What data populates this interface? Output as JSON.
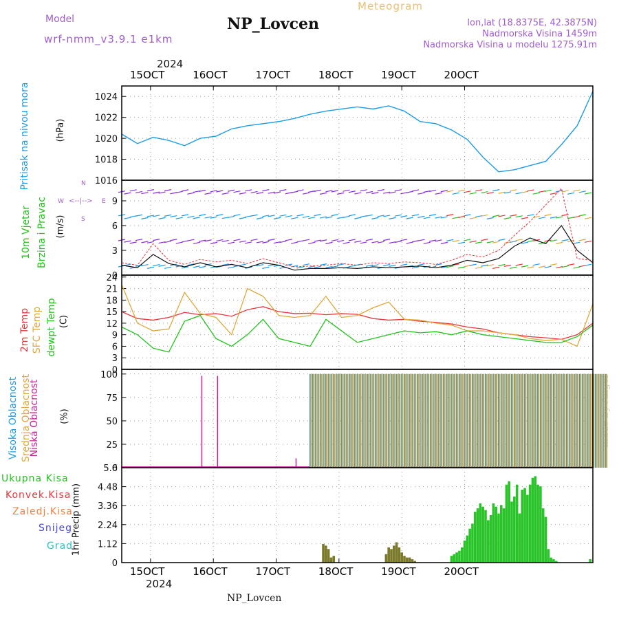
{
  "header": {
    "model_label": "Model",
    "model_name": "wrf-nmm_v3.9.1 e1km",
    "title": "NP_Lovcen",
    "meteogram_label": "Meteogram",
    "lonlat": "lon,lat (18.8375E, 42.3875N)",
    "elevation": "Nadmorska Visina 1459m",
    "model_elevation": "Nadmorska Visina u modelu 1275.91m"
  },
  "top_axis": {
    "year": "2024",
    "dates": [
      "15OCT",
      "16OCT",
      "17OCT",
      "18OCT",
      "19OCT",
      "20OCT"
    ]
  },
  "bottom_axis": {
    "year": "2024",
    "dates": [
      "15OCT",
      "16OCT",
      "17OCT",
      "18OCT",
      "19OCT",
      "20OCT"
    ],
    "station": "NP_Lovcen"
  },
  "watermark": "made by Angel",
  "colors": {
    "pressure": "#1e9be6",
    "temp2m": "#e8343a",
    "sfc": "#e0a83a",
    "dewpt": "#22c41c",
    "cloud_high": "#1e9be6",
    "cloud_mid": "#e0a83a",
    "cloud_low": "#c81e96",
    "rain": "#2ac42a",
    "wind_purple": "#8a2be2",
    "gust": "#e8343a"
  },
  "panels": {
    "pressure": {
      "label1": "Pritisak na nivou mora",
      "unit": "(hPa)",
      "ticks": [
        "1016",
        "1018",
        "1020",
        "1022",
        "1024"
      ]
    },
    "wind": {
      "label1": "10m Vjetar",
      "label2": "Brzina i Pravac",
      "unit": "(m/s)",
      "ticks": [
        "0",
        "3",
        "6",
        "9"
      ],
      "compass_w": "W",
      "compass_e": "E",
      "compass_n": "N",
      "compass_s": "S"
    },
    "temp": {
      "label1": "2m Temp",
      "label2": "SFC Temp",
      "label3": "dewpt Temp",
      "unit": "(C)",
      "ticks": [
        "0",
        "3",
        "6",
        "9",
        "12",
        "15",
        "18",
        "21",
        "24"
      ]
    },
    "cloud": {
      "label1": "Visoka Oblacnost",
      "label2": "Srednja Oblacnost",
      "label3": "Niska Oblacnost",
      "unit": "(%)",
      "ticks": [
        "0",
        "25",
        "50",
        "75",
        "100"
      ]
    },
    "precip": {
      "legend": [
        "Ukupna Kisa",
        "Konvek.Kisa",
        "Zaledj.Kisa",
        "Snijeg",
        "Grad"
      ],
      "unit": "1hr Precip (mm)",
      "ticks": [
        "0",
        "1.12",
        "2.24",
        "3.36",
        "4.48",
        "5.6"
      ]
    }
  },
  "chart_data": [
    {
      "type": "line",
      "title": "",
      "ylabel": "(hPa)",
      "ylim": [
        1016,
        1025
      ],
      "x": [
        0,
        6,
        12,
        18,
        24,
        30,
        36,
        42,
        48,
        54,
        60,
        66,
        72,
        78,
        84,
        90,
        96,
        102,
        108,
        114,
        120,
        126,
        132,
        138,
        144,
        150,
        156,
        162,
        168,
        174,
        180
      ],
      "series": [
        {
          "name": "Pritisak na nivou mora",
          "values": [
            1020.4,
            1019.5,
            1020.1,
            1019.8,
            1019.3,
            1020.0,
            1020.2,
            1020.9,
            1021.2,
            1021.4,
            1021.6,
            1021.9,
            1022.3,
            1022.6,
            1022.8,
            1023.0,
            1022.8,
            1023.1,
            1022.6,
            1021.6,
            1021.4,
            1020.8,
            1019.9,
            1018.2,
            1016.8,
            1017.0,
            1017.4,
            1017.8,
            1019.4,
            1021.2,
            1024.5
          ]
        }
      ]
    },
    {
      "type": "line",
      "title": "",
      "ylabel": "(m/s)",
      "ylim": [
        0,
        11.5
      ],
      "x": [
        0,
        6,
        12,
        18,
        24,
        30,
        36,
        42,
        48,
        54,
        60,
        66,
        72,
        78,
        84,
        90,
        96,
        102,
        108,
        114,
        120,
        126,
        132,
        138,
        144,
        150,
        156,
        162,
        168,
        174,
        180
      ],
      "series": [
        {
          "name": "10m Vjetar",
          "values": [
            1.2,
            0.9,
            2.5,
            1.4,
            1.0,
            1.5,
            1.0,
            1.3,
            0.9,
            1.5,
            1.2,
            0.6,
            0.8,
            0.8,
            0.9,
            0.8,
            1.0,
            0.9,
            1.0,
            1.1,
            0.9,
            1.2,
            1.8,
            1.5,
            2.0,
            3.5,
            4.5,
            3.8,
            6.0,
            3.0,
            1.5
          ]
        },
        {
          "name": "Gust",
          "values": [
            1.5,
            1.2,
            3.8,
            1.8,
            1.3,
            1.9,
            1.6,
            1.8,
            1.4,
            2.0,
            1.5,
            1.0,
            1.1,
            1.2,
            1.4,
            1.2,
            1.5,
            1.4,
            1.6,
            1.5,
            1.3,
            1.8,
            2.5,
            2.2,
            3.0,
            4.8,
            6.5,
            8.5,
            10.5,
            2.0,
            1.8
          ]
        }
      ]
    },
    {
      "type": "line",
      "title": "",
      "ylabel": "(C)",
      "ylim": [
        0,
        24
      ],
      "x": [
        0,
        6,
        12,
        18,
        24,
        30,
        36,
        42,
        48,
        54,
        60,
        66,
        72,
        78,
        84,
        90,
        96,
        102,
        108,
        114,
        120,
        126,
        132,
        138,
        144,
        150,
        156,
        162,
        168,
        174,
        180
      ],
      "series": [
        {
          "name": "2m Temp",
          "values": [
            15.0,
            13.2,
            12.8,
            13.5,
            14.8,
            14.2,
            14.5,
            13.8,
            15.5,
            16.3,
            15.0,
            14.5,
            14.6,
            14.2,
            14.5,
            14.3,
            13.2,
            12.8,
            13.0,
            12.5,
            12.2,
            11.8,
            11.0,
            10.5,
            9.5,
            9.0,
            8.5,
            8.2,
            7.8,
            9.0,
            12.0
          ]
        },
        {
          "name": "SFC Temp",
          "values": [
            22.0,
            12.0,
            10.0,
            10.5,
            20.0,
            14.5,
            13.5,
            9.0,
            21.0,
            19.0,
            14.0,
            13.5,
            14.0,
            19.0,
            13.5,
            14.0,
            16.0,
            17.5,
            13.0,
            12.8,
            12.0,
            11.5,
            10.0,
            10.0,
            9.5,
            9.0,
            8.0,
            7.5,
            7.8,
            6.0,
            17.0
          ]
        },
        {
          "name": "dewpt Temp",
          "values": [
            11.0,
            9.0,
            5.5,
            4.5,
            12.5,
            14.0,
            8.0,
            6.0,
            9.0,
            13.0,
            8.0,
            7.0,
            6.0,
            13.0,
            10.0,
            7.0,
            8.0,
            9.0,
            10.0,
            9.5,
            9.8,
            9.0,
            10.0,
            9.0,
            8.5,
            8.0,
            7.5,
            7.0,
            7.0,
            8.5,
            11.5
          ]
        }
      ]
    },
    {
      "type": "bar",
      "title": "",
      "ylabel": "(%)",
      "ylim": [
        0,
        100
      ],
      "series": [
        {
          "name": "Visoka Oblacnost",
          "values": [
            0,
            0,
            0,
            0,
            0,
            0,
            0,
            0,
            0,
            0,
            0,
            0,
            100,
            100,
            100,
            100,
            100,
            100,
            100,
            100,
            100,
            100,
            100,
            100,
            100,
            100,
            100,
            100,
            100,
            100,
            100
          ]
        },
        {
          "name": "Srednja Oblacnost",
          "values": [
            0,
            0,
            0,
            0,
            0,
            0,
            0,
            0,
            0,
            0,
            0,
            0,
            100,
            100,
            100,
            100,
            100,
            100,
            100,
            100,
            100,
            100,
            100,
            100,
            100,
            100,
            100,
            100,
            100,
            100,
            100
          ]
        },
        {
          "name": "Niska Oblacnost",
          "values": [
            0,
            0,
            0,
            0,
            0,
            98,
            98,
            0,
            0,
            0,
            0,
            10,
            0,
            0,
            0,
            0,
            0,
            0,
            0,
            0,
            0,
            0,
            0,
            0,
            0,
            0,
            0,
            0,
            0,
            0,
            0
          ]
        }
      ]
    },
    {
      "type": "bar",
      "title": "",
      "ylabel": "1hr Precip (mm)",
      "ylim": [
        0,
        5.6
      ],
      "x": [
        77,
        78,
        79,
        80,
        81,
        101,
        102,
        103,
        104,
        105,
        106,
        107,
        108,
        109,
        110,
        111,
        112,
        126,
        127,
        128,
        129,
        130,
        131,
        132,
        133,
        134,
        135,
        136,
        137,
        138,
        139,
        140,
        141,
        142,
        143,
        144,
        145,
        146,
        147,
        148,
        149,
        150,
        151,
        152,
        153,
        154,
        155,
        156,
        157,
        158,
        159,
        160,
        161,
        162,
        163,
        164,
        165,
        166,
        179
      ],
      "series": [
        {
          "name": "Ukupna Kisa",
          "values": [
            1.1,
            1.0,
            0.8,
            0.3,
            0.4,
            0.5,
            0.9,
            0.8,
            1.0,
            1.2,
            0.9,
            0.6,
            0.4,
            0.3,
            0.3,
            0.2,
            0.1,
            0.4,
            0.5,
            0.6,
            0.7,
            0.9,
            1.3,
            1.6,
            2.0,
            2.3,
            3.0,
            3.2,
            3.5,
            3.3,
            3.1,
            2.5,
            2.8,
            3.5,
            3.3,
            2.9,
            3.4,
            3.2,
            4.6,
            4.8,
            3.6,
            3.9,
            4.6,
            2.9,
            4.3,
            4.4,
            4.0,
            4.6,
            5.0,
            5.1,
            4.6,
            4.5,
            3.2,
            2.7,
            0.8,
            0.3,
            0.2,
            0.1,
            0.2
          ]
        }
      ]
    }
  ]
}
